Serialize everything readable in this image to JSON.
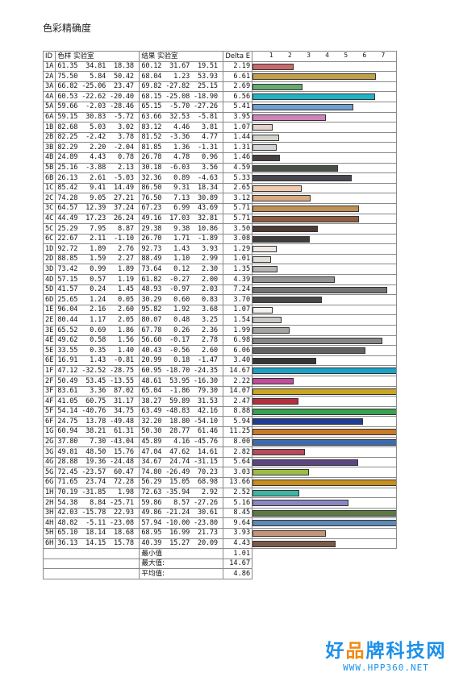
{
  "title": "色彩精确度",
  "header": {
    "id": "ID",
    "ref": "色样 实验室",
    "res": "结果 实验室",
    "de": "Delta E"
  },
  "chart_data": {
    "type": "bar",
    "orientation": "horizontal",
    "x_ticks": [
      "1",
      "2",
      "3",
      "4",
      "5",
      "6",
      "7"
    ],
    "xlim": [
      0,
      7.7
    ],
    "rows": [
      {
        "id": "1A",
        "ref": "61.35  34.81  18.38",
        "res": "60.12  31.67  19.51",
        "de": "2.19",
        "value": 2.19,
        "color": "#c86a6c"
      },
      {
        "id": "2A",
        "ref": "75.50   5.84  50.42",
        "res": "68.04   1.23  53.93",
        "de": "6.61",
        "value": 6.61,
        "color": "#c1a049"
      },
      {
        "id": "3A",
        "ref": "66.82 -25.06  23.47",
        "res": "69.82 -27.82  25.15",
        "de": "2.69",
        "value": 2.69,
        "color": "#67a971"
      },
      {
        "id": "4A",
        "ref": "60.53 -22.62 -20.40",
        "res": "68.15 -25.08 -18.90",
        "de": "6.56",
        "value": 6.56,
        "color": "#1fb3c4"
      },
      {
        "id": "5A",
        "ref": "59.66  -2.03 -28.46",
        "res": "65.15  -5.70 -27.26",
        "de": "5.41",
        "value": 5.41,
        "color": "#6f9fcb"
      },
      {
        "id": "6A",
        "ref": "59.15  30.83  -5.72",
        "res": "63.66  32.53  -5.81",
        "de": "3.95",
        "value": 3.95,
        "color": "#cf83b9"
      },
      {
        "id": "1B",
        "ref": "82.68   5.03   3.02",
        "res": "83.12   4.46   3.81",
        "de": "1.07",
        "value": 1.07,
        "color": "#e6cfcf"
      },
      {
        "id": "2B",
        "ref": "82.25  -2.42   3.78",
        "res": "81.52  -3.36   4.77",
        "de": "1.44",
        "value": 1.44,
        "color": "#d2d4cc"
      },
      {
        "id": "3B",
        "ref": "82.29   2.20  -2.04",
        "res": "81.85   1.36  -1.31",
        "de": "1.31",
        "value": 1.31,
        "color": "#d4d4d7"
      },
      {
        "id": "4B",
        "ref": "24.89   4.43   0.78",
        "res": "26.78   4.78   0.96",
        "de": "1.46",
        "value": 1.46,
        "color": "#45403f"
      },
      {
        "id": "5B",
        "ref": "25.16  -3.88   2.13",
        "res": "30.18  -6.03   3.56",
        "de": "4.59",
        "value": 4.59,
        "color": "#4a4e48"
      },
      {
        "id": "6B",
        "ref": "26.13   2.61  -5.03",
        "res": "32.36   0.89  -4.63",
        "de": "5.33",
        "value": 5.33,
        "color": "#48464f"
      },
      {
        "id": "1C",
        "ref": "85.42   9.41  14.49",
        "res": "86.50   9.31  18.34",
        "de": "2.65",
        "value": 2.65,
        "color": "#f2ccb0"
      },
      {
        "id": "2C",
        "ref": "74.28   9.05  27.21",
        "res": "76.50   7.13  30.89",
        "de": "3.12",
        "value": 3.12,
        "color": "#d8aa80"
      },
      {
        "id": "3C",
        "ref": "64.57  12.39  37.24",
        "res": "67.23   6.99  43.69",
        "de": "5.71",
        "value": 5.71,
        "color": "#c08f55"
      },
      {
        "id": "4C",
        "ref": "44.49  17.23  26.24",
        "res": "49.16  17.03  32.81",
        "de": "5.71",
        "value": 5.71,
        "color": "#8d5d3e"
      },
      {
        "id": "5C",
        "ref": "25.29   7.95   8.87",
        "res": "29.38   9.38  10.86",
        "de": "3.50",
        "value": 3.5,
        "color": "#4f3b36"
      },
      {
        "id": "6C",
        "ref": "22.67   2.11  -1.10",
        "res": "26.70   1.71  -1.89",
        "de": "3.08",
        "value": 3.08,
        "color": "#3e3b3c"
      },
      {
        "id": "1D",
        "ref": "92.72   1.89   2.76",
        "res": "92.73   1.43   3.93",
        "de": "1.29",
        "value": 1.29,
        "color": "#ede9e1"
      },
      {
        "id": "2D",
        "ref": "88.85   1.59   2.27",
        "res": "88.49   1.10   2.99",
        "de": "1.01",
        "value": 1.01,
        "color": "#e2dfd9"
      },
      {
        "id": "3D",
        "ref": "73.42   0.99   1.89",
        "res": "73.64   0.12   2.30",
        "de": "1.35",
        "value": 1.35,
        "color": "#b8b6b3"
      },
      {
        "id": "4D",
        "ref": "57.15   0.57   1.19",
        "res": "61.82  -0.27   2.00",
        "de": "4.39",
        "value": 4.39,
        "color": "#969595"
      },
      {
        "id": "5D",
        "ref": "41.57   0.24   1.45",
        "res": "48.93  -0.97   2.03",
        "de": "7.24",
        "value": 7.24,
        "color": "#747373"
      },
      {
        "id": "6D",
        "ref": "25.65   1.24   0.05",
        "res": "30.29   0.60   0.83",
        "de": "3.70",
        "value": 3.7,
        "color": "#494848"
      },
      {
        "id": "1E",
        "ref": "96.04   2.16   2.60",
        "res": "95.82   1.92   3.68",
        "de": "1.07",
        "value": 1.07,
        "color": "#f4f1ee"
      },
      {
        "id": "2E",
        "ref": "80.44   1.17   2.05",
        "res": "80.07   0.48   3.25",
        "de": "1.54",
        "value": 1.54,
        "color": "#cbc9c6"
      },
      {
        "id": "3E",
        "ref": "65.52   0.69   1.86",
        "res": "67.78   0.26   2.36",
        "de": "1.99",
        "value": 1.99,
        "color": "#a5a4a2"
      },
      {
        "id": "4E",
        "ref": "49.62   0.58   1.56",
        "res": "56.60  -0.17   2.78",
        "de": "6.98",
        "value": 6.98,
        "color": "#888888"
      },
      {
        "id": "5E",
        "ref": "33.55   0.35   1.40",
        "res": "40.43  -0.56   2.60",
        "de": "6.06",
        "value": 6.06,
        "color": "#626262"
      },
      {
        "id": "6E",
        "ref": "16.91   1.43  -0.81",
        "res": "20.99   0.18  -1.47",
        "de": "3.40",
        "value": 3.4,
        "color": "#363636"
      },
      {
        "id": "1F",
        "ref": "47.12 -32.52 -28.75",
        "res": "60.95 -18.70 -24.35",
        "de": "14.67",
        "value": 14.67,
        "color": "#1ba1c6"
      },
      {
        "id": "2F",
        "ref": "50.49  53.45 -13.55",
        "res": "48.61  53.95 -16.30",
        "de": "2.22",
        "value": 2.22,
        "color": "#be4f9c"
      },
      {
        "id": "3F",
        "ref": "83.61   3.36  87.02",
        "res": "65.04  -1.86  79.30",
        "de": "14.07",
        "value": 14.07,
        "color": "#c9a524"
      },
      {
        "id": "4F",
        "ref": "41.05  60.75  31.17",
        "res": "38.27  59.89  31.53",
        "de": "2.47",
        "value": 2.47,
        "color": "#b52f3e"
      },
      {
        "id": "5F",
        "ref": "54.14 -40.76  34.75",
        "res": "63.49 -48.83  42.16",
        "de": "8.88",
        "value": 8.88,
        "color": "#3aa152"
      },
      {
        "id": "6F",
        "ref": "24.75  13.78 -49.48",
        "res": "32.20  18.80 -54.10",
        "de": "5.94",
        "value": 5.94,
        "color": "#1c3c96"
      },
      {
        "id": "1G",
        "ref": "60.94  38.21  61.31",
        "res": "50.30  28.77  61.46",
        "de": "11.25",
        "value": 11.25,
        "color": "#c87a2a"
      },
      {
        "id": "2G",
        "ref": "37.80   7.30 -43.04",
        "res": "45.89   4.16 -45.76",
        "de": "8.00",
        "value": 8.0,
        "color": "#3d6bb0"
      },
      {
        "id": "3G",
        "ref": "49.81  48.50  15.76",
        "res": "47.04  47.62  14.61",
        "de": "2.82",
        "value": 2.82,
        "color": "#b74b5c"
      },
      {
        "id": "4G",
        "ref": "28.88  19.36 -24.48",
        "res": "34.67  24.74 -31.15",
        "de": "5.64",
        "value": 5.64,
        "color": "#5d4583"
      },
      {
        "id": "5G",
        "ref": "72.45 -23.57  60.47",
        "res": "74.80 -26.49  70.23",
        "de": "3.03",
        "value": 3.03,
        "color": "#9cbc45"
      },
      {
        "id": "6G",
        "ref": "71.65  23.74  72.28",
        "res": "56.29  15.05  68.98",
        "de": "13.66",
        "value": 13.66,
        "color": "#c88d1f"
      },
      {
        "id": "1H",
        "ref": "70.19 -31.85   1.98",
        "res": "72.63 -35.94   2.92",
        "de": "2.52",
        "value": 2.52,
        "color": "#3fb6a4"
      },
      {
        "id": "2H",
        "ref": "54.38   8.84 -25.71",
        "res": "59.86   8.57 -27.26",
        "de": "5.16",
        "value": 5.16,
        "color": "#8a88c0"
      },
      {
        "id": "3H",
        "ref": "42.03 -15.78  22.93",
        "res": "49.86 -21.24  30.61",
        "de": "8.45",
        "value": 8.45,
        "color": "#5d7a46"
      },
      {
        "id": "4H",
        "ref": "48.82  -5.11 -23.08",
        "res": "57.94 -10.00 -23.80",
        "de": "9.64",
        "value": 9.64,
        "color": "#5f8ab3"
      },
      {
        "id": "5H",
        "ref": "65.10  18.14  18.68",
        "res": "68.95  16.99  21.73",
        "de": "3.93",
        "value": 3.93,
        "color": "#c59378"
      },
      {
        "id": "6H",
        "ref": "36.13  14.15  15.78",
        "res": "40.39  15.27  20.09",
        "de": "4.43",
        "value": 4.43,
        "color": "#7b5a4a"
      }
    ]
  },
  "summary": [
    {
      "label": "最小值",
      "value": "1.01"
    },
    {
      "label": "最大值:",
      "value": "14.67"
    },
    {
      "label": "平均值:",
      "value": "4.86"
    }
  ],
  "watermark": {
    "main_pre": "好",
    "main_o": "品",
    "main_post": "牌科技网",
    "sub": "WWW.HPP360.NET"
  }
}
